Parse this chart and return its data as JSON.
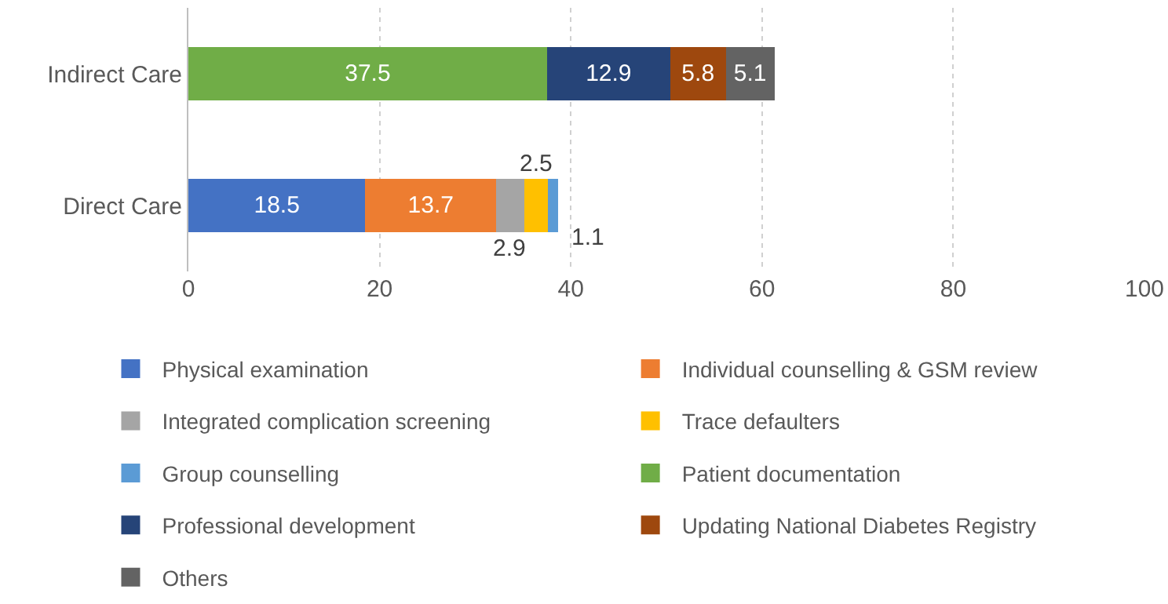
{
  "chart_data": {
    "type": "bar",
    "orientation": "horizontal",
    "stacked": true,
    "categories": [
      "Indirect Care",
      "Direct Care"
    ],
    "series": [
      {
        "name": "Physical examination",
        "color": "#4472c4",
        "values": [
          null,
          18.5
        ]
      },
      {
        "name": "Individual counselling & GSM review",
        "color": "#ed7d31",
        "values": [
          null,
          13.7
        ]
      },
      {
        "name": "Integrated complication screening",
        "color": "#a5a5a5",
        "values": [
          null,
          2.9
        ]
      },
      {
        "name": "Trace defaulters",
        "color": "#ffc000",
        "values": [
          null,
          2.5
        ]
      },
      {
        "name": "Group counselling",
        "color": "#5b9bd5",
        "values": [
          null,
          1.1
        ]
      },
      {
        "name": "Patient documentation",
        "color": "#70ad47",
        "values": [
          37.5,
          null
        ]
      },
      {
        "name": "Professional development",
        "color": "#264478",
        "values": [
          12.9,
          null
        ]
      },
      {
        "name": "Updating National Diabetes Registry",
        "color": "#9e480e",
        "values": [
          5.8,
          null
        ]
      },
      {
        "name": "Others",
        "color": "#636363",
        "values": [
          5.1,
          null
        ]
      }
    ],
    "xlim": [
      0,
      100
    ],
    "xticks": [
      0,
      20,
      40,
      60,
      80,
      100
    ],
    "grid": "x",
    "legend": "bottom",
    "data_labels": true
  }
}
